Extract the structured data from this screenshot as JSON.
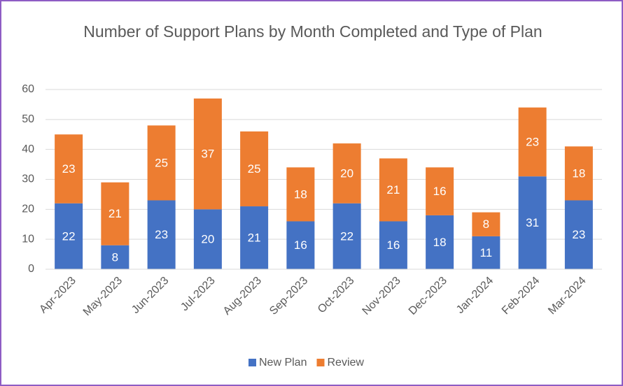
{
  "chart_data": {
    "type": "stacked_bar",
    "title": "Number of Support Plans by Month Completed and Type of Plan",
    "categories": [
      "Apr-2023",
      "May-2023",
      "Jun-2023",
      "Jul-2023",
      "Aug-2023",
      "Sep-2023",
      "Oct-2023",
      "Nov-2023",
      "Dec-2023",
      "Jan-2024",
      "Feb-2024",
      "Mar-2024"
    ],
    "series": [
      {
        "name": "New Plan",
        "color": "#4472c4",
        "values": [
          22,
          8,
          23,
          20,
          21,
          16,
          22,
          16,
          18,
          11,
          31,
          23
        ]
      },
      {
        "name": "Review",
        "color": "#ed7d31",
        "values": [
          23,
          21,
          25,
          37,
          25,
          18,
          20,
          21,
          16,
          8,
          23,
          18
        ]
      }
    ],
    "ylim": [
      0,
      60
    ],
    "yticks": [
      0,
      10,
      20,
      30,
      40,
      50,
      60
    ],
    "grid": true,
    "legend": "bottom"
  }
}
